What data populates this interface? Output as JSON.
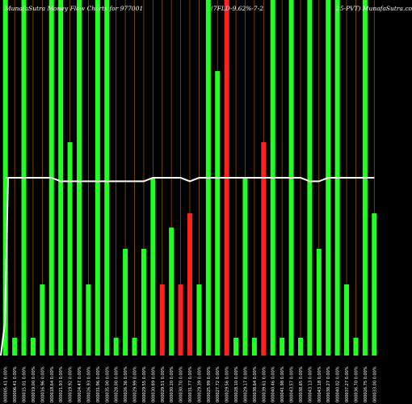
{
  "title": {
    "part1": "MunafaSutra  Money Flow  Charts for 977001",
    "part2": "(7FLD-9.62%-7-2",
    "part3": "25-PVT) MunafaSutra.co"
  },
  "colors": {
    "background": "#000000",
    "up": "#22ff22",
    "down": "#ff2020",
    "line": "#ffffff",
    "grid": "#8a5200",
    "label": "#ffffff"
  },
  "chart_data": {
    "type": "bar",
    "ylim": [
      0,
      100
    ],
    "categories": [
      "000005.41 0.00%",
      "000006.41 0.00%",
      "000015.01 0.00%",
      "000019.00 0.00%",
      "000016.96 0.00%",
      "000018.64 0.00%",
      "000021.93 0.00%",
      "000019.92 0.00%",
      "000024.47 0.00%",
      "000026.93 0.00%",
      "000031.96 0.00%",
      "000035.00 0.00%",
      "000028.00 0.00%",
      "000026.36 0.00%",
      "000029.99 0.00%",
      "000029.55 0.00%",
      "000030.89 0.00%",
      "000029.51 0.00%",
      "000030.20 0.00%",
      "000030.70 0.00%",
      "000031.77 0.00%",
      "000029.39 0.00%",
      "000025.99 0.00%",
      "000027.72 0.00%",
      "000029.56 0.00%",
      "000028.10 0.00%",
      "000029.17 0.00%",
      "000038.64 0.00%",
      "000039.61 0.00%",
      "000040.46 0.00%",
      "000041.98 0.00%",
      "000043.57 0.00%",
      "000038.65 0.00%",
      "000043.13 0.00%",
      "000043.18 0.00%",
      "000038.27 0.00%",
      "000040.02 0.00%",
      "000037.27 0.00%",
      "000036.70 0.00%",
      "000026.75 0.00%",
      "000033.00 0.00%"
    ],
    "values": [
      100,
      5,
      100,
      5,
      20,
      100,
      100,
      60,
      100,
      20,
      100,
      100,
      5,
      30,
      5,
      30,
      50,
      20,
      36,
      20,
      40,
      20,
      100,
      80,
      100,
      5,
      50,
      5,
      60,
      100,
      5,
      100,
      5,
      100,
      30,
      100,
      100,
      20,
      5,
      100,
      40
    ],
    "direction": [
      "up",
      "up",
      "up",
      "up",
      "up",
      "up",
      "up",
      "up",
      "up",
      "up",
      "up",
      "up",
      "up",
      "up",
      "up",
      "up",
      "up",
      "down",
      "up",
      "down",
      "down",
      "up",
      "up",
      "up",
      "down",
      "up",
      "up",
      "up",
      "down",
      "up",
      "up",
      "up",
      "up",
      "up",
      "up",
      "up",
      "up",
      "up",
      "up",
      "up",
      "up"
    ],
    "line": [
      50,
      50,
      50,
      50,
      50,
      50,
      49,
      49,
      49,
      49,
      49,
      49,
      49,
      49,
      49,
      49,
      50,
      50,
      50,
      50,
      49,
      50,
      50,
      50,
      50,
      50,
      50,
      50,
      50,
      50,
      50,
      50,
      50,
      49,
      49,
      50,
      50,
      50,
      50,
      50,
      50
    ]
  }
}
